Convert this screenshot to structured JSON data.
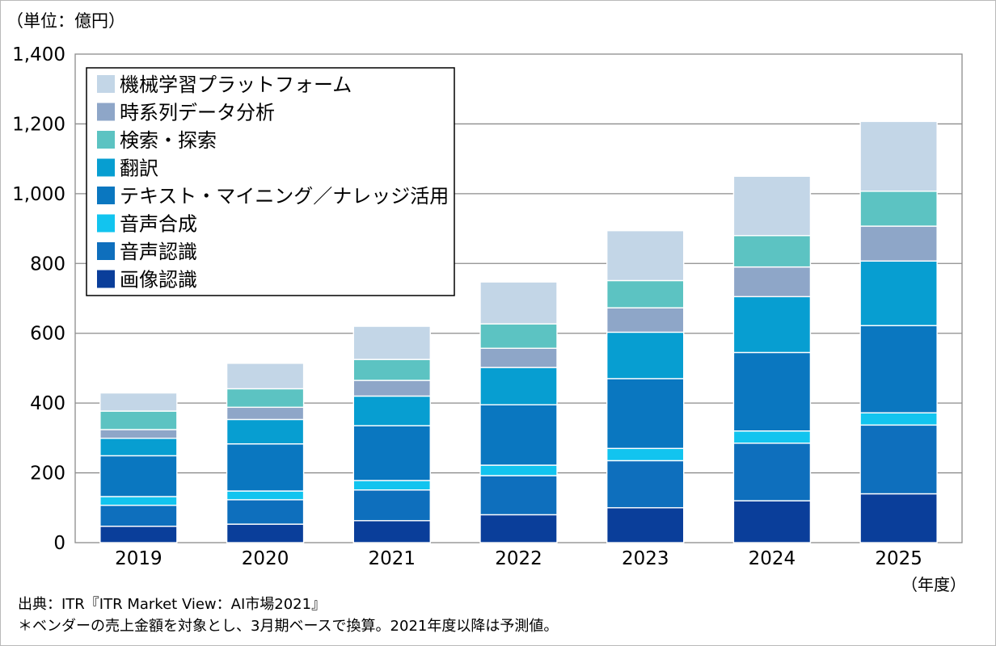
{
  "unit_label": "（単位：億円）",
  "year_unit": "（年度）",
  "source": "出典：ITR『ITR Market View：AI市場2021』",
  "note": "＊ベンダーの売上金額を対象とし、3月期ベースで換算。2021年度以降は予測値。",
  "chart_data": {
    "type": "bar",
    "stacked": true,
    "categories": [
      "2019",
      "2020",
      "2021",
      "2022",
      "2023",
      "2024",
      "2025"
    ],
    "ylim": [
      0,
      1400
    ],
    "yticks": [
      0,
      200,
      400,
      600,
      800,
      1000,
      1200,
      1400
    ],
    "ytick_labels": [
      "0",
      "200",
      "400",
      "600",
      "800",
      "1,000",
      "1,200",
      "1,400"
    ],
    "grid": true,
    "legend_position": "top-left",
    "series": [
      {
        "name": "画像認識",
        "color": "#0a3e9a",
        "values": [
          47,
          53,
          63,
          80,
          100,
          120,
          140
        ]
      },
      {
        "name": "音声認識",
        "color": "#0e6fbd",
        "values": [
          60,
          70,
          88,
          112,
          135,
          165,
          197
        ]
      },
      {
        "name": "音声合成",
        "color": "#12c4ef",
        "values": [
          25,
          25,
          27,
          30,
          35,
          35,
          35
        ]
      },
      {
        "name": "テキスト・マイニング／ナレッジ活用",
        "color": "#0a77c0",
        "values": [
          117,
          135,
          157,
          173,
          200,
          225,
          250
        ]
      },
      {
        "name": "翻訳",
        "color": "#079ed1",
        "values": [
          50,
          70,
          85,
          107,
          133,
          160,
          185
        ]
      },
      {
        "name": "時系列データ分析",
        "color": "#8ea6c8",
        "values": [
          25,
          35,
          45,
          55,
          70,
          85,
          100
        ]
      },
      {
        "name": "検索・探索",
        "color": "#5cc3c2",
        "values": [
          53,
          53,
          60,
          70,
          78,
          90,
          100
        ]
      },
      {
        "name": "機械学習プラットフォーム",
        "color": "#c3d6e7",
        "values": [
          52,
          73,
          95,
          120,
          143,
          170,
          200
        ]
      }
    ],
    "legend_order": [
      "機械学習プラットフォーム",
      "時系列データ分析",
      "検索・探索",
      "翻訳",
      "テキスト・マイニング／ナレッジ活用",
      "音声合成",
      "音声認識",
      "画像認識"
    ]
  }
}
